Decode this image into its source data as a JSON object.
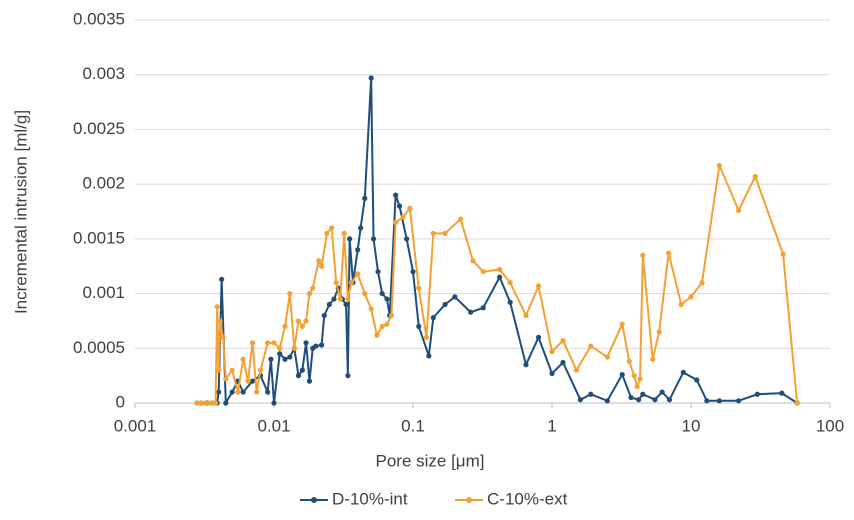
{
  "chart_data": {
    "type": "line",
    "xlabel": "Pore size [μm]",
    "ylabel": "Incremental intrusion [ml/g]",
    "log_x": true,
    "grid": true,
    "legend": "bottom",
    "xlim": [
      0.001,
      100
    ],
    "xticks": [
      0.001,
      0.01,
      0.1,
      1,
      10,
      100
    ],
    "ylim": [
      0,
      0.0035
    ],
    "yticks": [
      0,
      0.0005,
      0.001,
      0.0015,
      0.002,
      0.0025,
      0.003,
      0.0035
    ],
    "series": [
      {
        "name": "D-10%-int",
        "color": "#1f4e79",
        "x": [
          0.0028,
          0.003,
          0.0033,
          0.0036,
          0.0039,
          0.004,
          0.0042,
          0.0045,
          0.005,
          0.0055,
          0.006,
          0.007,
          0.008,
          0.009,
          0.0095,
          0.01,
          0.011,
          0.012,
          0.013,
          0.014,
          0.015,
          0.016,
          0.017,
          0.018,
          0.019,
          0.02,
          0.022,
          0.023,
          0.025,
          0.027,
          0.029,
          0.031,
          0.033,
          0.034,
          0.035,
          0.037,
          0.04,
          0.042,
          0.045,
          0.05,
          0.052,
          0.056,
          0.06,
          0.065,
          0.068,
          0.075,
          0.08,
          0.09,
          0.1,
          0.11,
          0.13,
          0.14,
          0.17,
          0.2,
          0.26,
          0.32,
          0.42,
          0.5,
          0.65,
          0.8,
          1.0,
          1.2,
          1.6,
          1.9,
          2.5,
          3.2,
          3.7,
          4.2,
          4.5,
          5.5,
          6.2,
          7,
          8.8,
          11,
          13,
          16,
          22,
          30,
          45,
          58
        ],
        "values": [
          0,
          0,
          0,
          0,
          0,
          0.0001,
          0.00113,
          0,
          0.0001,
          0.0002,
          0.0001,
          0.0002,
          0.00025,
          0.0001,
          0.0004,
          0,
          0.00045,
          0.0004,
          0.00042,
          0.0005,
          0.00025,
          0.0003,
          0.00055,
          0.0002,
          0.0005,
          0.00052,
          0.00053,
          0.0008,
          0.0009,
          0.00095,
          0.00105,
          0.00095,
          0.0009,
          0.00025,
          0.0015,
          0.0011,
          0.0014,
          0.0016,
          0.00187,
          0.00297,
          0.0015,
          0.0012,
          0.001,
          0.00095,
          0.0008,
          0.0019,
          0.0018,
          0.0015,
          0.0012,
          0.0007,
          0.00043,
          0.00078,
          0.0009,
          0.00097,
          0.00083,
          0.00087,
          0.00115,
          0.00092,
          0.00035,
          0.0006,
          0.00027,
          0.00037,
          3e-05,
          8e-05,
          2e-05,
          0.00026,
          5e-05,
          3e-05,
          8e-05,
          3e-05,
          0.0001,
          3e-05,
          0.00028,
          0.00021,
          2e-05,
          2e-05,
          2e-05,
          8e-05,
          9e-05,
          0
        ]
      },
      {
        "name": "C-10%-ext",
        "color": "#f4a134",
        "x": [
          0.0028,
          0.003,
          0.0032,
          0.0034,
          0.0036,
          0.0038,
          0.0039,
          0.004,
          0.0041,
          0.0043,
          0.0045,
          0.005,
          0.0055,
          0.006,
          0.0065,
          0.007,
          0.0075,
          0.008,
          0.009,
          0.01,
          0.011,
          0.012,
          0.013,
          0.014,
          0.015,
          0.016,
          0.017,
          0.018,
          0.019,
          0.021,
          0.022,
          0.024,
          0.026,
          0.028,
          0.03,
          0.032,
          0.034,
          0.036,
          0.04,
          0.045,
          0.05,
          0.055,
          0.06,
          0.065,
          0.07,
          0.075,
          0.085,
          0.095,
          0.11,
          0.125,
          0.14,
          0.17,
          0.22,
          0.27,
          0.32,
          0.42,
          0.5,
          0.65,
          0.8,
          1.0,
          1.2,
          1.5,
          1.9,
          2.5,
          3.2,
          3.6,
          3.9,
          4.1,
          4.3,
          4.5,
          5.3,
          5.9,
          6.9,
          8.5,
          10,
          12,
          16,
          22,
          29,
          46,
          58
        ],
        "values": [
          0,
          0,
          0,
          0,
          0,
          0,
          0.00088,
          0.0003,
          0.00075,
          0.0006,
          0.00022,
          0.0003,
          0.0001,
          0.0004,
          0.0002,
          0.00055,
          0.0001,
          0.0003,
          0.00055,
          0.00055,
          0.0005,
          0.0007,
          0.001,
          0.0005,
          0.00075,
          0.0007,
          0.00075,
          0.001,
          0.00105,
          0.0013,
          0.00125,
          0.00155,
          0.0016,
          0.0011,
          0.00095,
          0.00155,
          0.00095,
          0.0011,
          0.00118,
          0.001,
          0.00086,
          0.00062,
          0.0007,
          0.00072,
          0.0008,
          0.00165,
          0.0017,
          0.00178,
          0.00105,
          0.0006,
          0.00155,
          0.00155,
          0.00168,
          0.0013,
          0.0012,
          0.00122,
          0.0011,
          0.0008,
          0.00107,
          0.00047,
          0.00057,
          0.0003,
          0.00052,
          0.00042,
          0.00072,
          0.00038,
          0.00025,
          0.00015,
          0.00022,
          0.00135,
          0.0004,
          0.00065,
          0.00137,
          0.0009,
          0.00097,
          0.0011,
          0.00217,
          0.00176,
          0.00207,
          0.00136,
          0
        ]
      }
    ]
  }
}
